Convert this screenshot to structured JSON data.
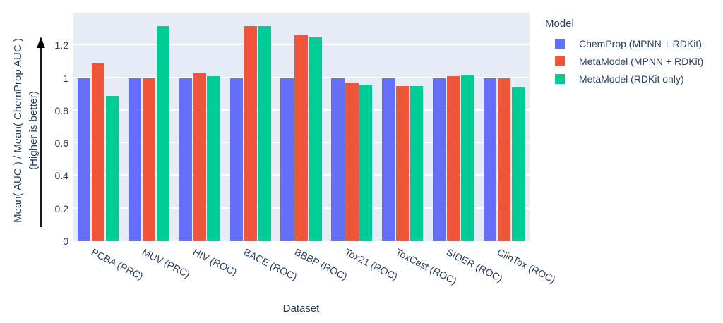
{
  "figure": {
    "y_axis_title_line1": "Mean( AUC ) / Mean( ChemProp AUC )",
    "y_axis_title_line2": "(Higher is better)",
    "x_axis_title": "Dataset",
    "colors": {
      "plot_background": "#E5ECF6",
      "gridline": "#FFFFFF",
      "text": "#2A3F5F",
      "arrow": "#000000"
    }
  },
  "chart_data": {
    "type": "bar",
    "title": "",
    "xlabel": "Dataset",
    "ylabel": "Mean( AUC ) / Mean( ChemProp AUC ) (Higher is better)",
    "categories": [
      "PCBA (PRC)",
      "MUV (PRC)",
      "HIV (ROC)",
      "BACE (ROC)",
      "BBBP (ROC)",
      "Tox21 (ROC)",
      "ToxCast (ROC)",
      "SIDER (ROC)",
      "ClinTox (ROC)"
    ],
    "series": [
      {
        "name": "ChemProp (MPNN + RDKit)",
        "color": "#636EFA",
        "values": [
          1.0,
          1.0,
          1.0,
          1.0,
          1.0,
          1.0,
          1.0,
          1.0,
          1.0
        ]
      },
      {
        "name": "MetaModel (MPNN + RDKit)",
        "color": "#EF553B",
        "values": [
          1.09,
          1.0,
          1.03,
          1.32,
          1.26,
          0.97,
          0.95,
          1.01,
          1.0
        ]
      },
      {
        "name": "MetaModel (RDKit only)",
        "color": "#00CC96",
        "values": [
          0.89,
          1.32,
          1.01,
          1.32,
          1.25,
          0.96,
          0.95,
          1.02,
          0.94
        ]
      }
    ],
    "ylim": [
      0,
      1.4
    ],
    "yticks": [
      0,
      0.2,
      0.4,
      0.6,
      0.8,
      1,
      1.2
    ],
    "ytick_labels": [
      "0",
      "0.2",
      "0.4",
      "0.6",
      "0.8",
      "1",
      "1.2"
    ],
    "xtick_angle_deg": 27,
    "legend_title": "Model",
    "legend_position": "right",
    "grid": true
  }
}
